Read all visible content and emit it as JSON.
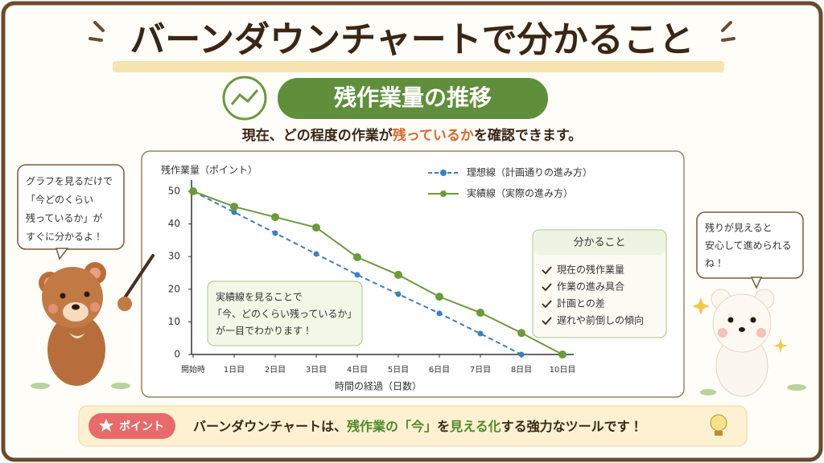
{
  "header": {
    "title": "バーンダウンチャートで分かること",
    "section": "残作業量の推移",
    "subtitle": [
      "現在、どの程度の作業が",
      "残っているか",
      "を確認できます。"
    ]
  },
  "chart_data": {
    "type": "line",
    "ylabel": "残作業量（ポイント）",
    "xlabel": "時間の経過（日数）",
    "categories": [
      "開始時",
      "1日目",
      "2日目",
      "3日目",
      "4日目",
      "5日目",
      "6日目",
      "7日目",
      "8日目",
      "10日目"
    ],
    "series": [
      {
        "name": "理想線（計画通りの進み方）",
        "color": "#3b7fc4",
        "line_style": "dashed",
        "values": [
          50,
          43.6,
          37.2,
          30.8,
          24.4,
          18.5,
          12.6,
          6.4,
          0,
          null
        ]
      },
      {
        "name": "実績線（実際の進み方）",
        "color": "#6a9a3a",
        "line_style": "solid",
        "values": [
          50,
          45.3,
          42.1,
          38.9,
          29.8,
          24.4,
          17.7,
          12.8,
          6.6,
          0
        ]
      }
    ],
    "ylim": [
      0,
      50
    ],
    "yticks": [
      0,
      10,
      20,
      30,
      40,
      50
    ],
    "legend": "top-right",
    "callout": [
      "実績線を見ることで",
      "「今、どのくらい残っているか」",
      "が一目でわかります！"
    ],
    "insights": {
      "title": "分かること",
      "items": [
        "現在の残作業量",
        "作業の進み具合",
        "計画との差",
        "遅れや前倒しの傾向"
      ]
    }
  },
  "bubbles": {
    "left": [
      "グラフを見るだけで",
      "「今どのくらい",
      "残っているか」が",
      "すぐに分かるよ！"
    ],
    "right": [
      "残りが見えると",
      "安心して進められる",
      "ね！"
    ]
  },
  "footer": {
    "badge": "ポイント",
    "text": [
      "バーンダウンチャートは、",
      "残作業の「今」",
      "を",
      "見える化",
      "する強力なツールです！"
    ]
  }
}
